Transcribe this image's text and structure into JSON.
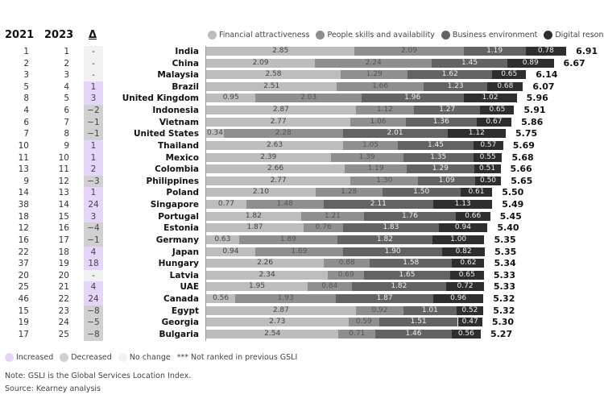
{
  "headers": {
    "y2021": "2021",
    "y2023": "2023",
    "delta": "Δ"
  },
  "legend": [
    {
      "label": "Financial attractiveness",
      "color": "#bdbdbd"
    },
    {
      "label": "People skills and availability",
      "color": "#8f8f8f"
    },
    {
      "label": "Business environment",
      "color": "#636363"
    },
    {
      "label": "Digital resonance",
      "color": "#2e2e2e"
    }
  ],
  "change_legend": [
    {
      "label": "Increased",
      "color": "#e6d5fb"
    },
    {
      "label": "Decreased",
      "color": "#d0d0d0"
    },
    {
      "label": "No change",
      "color": "#f2f2f2"
    }
  ],
  "not_ranked_note": "*** Not ranked in previous GSLI",
  "note": "Note: GSLI is the Global Services Location Index.",
  "source": "Source: Kearney analysis",
  "chart_data": {
    "type": "bar",
    "orientation": "horizontal",
    "stacked": true,
    "series_names": [
      "Financial attractiveness",
      "People skills and availability",
      "Business environment",
      "Digital resonance"
    ],
    "rows": [
      {
        "country": "India",
        "r2021": "1",
        "r2023": "1",
        "delta": "-",
        "change": "none",
        "values": [
          2.85,
          2.09,
          1.19,
          0.78
        ],
        "total": "6.91"
      },
      {
        "country": "China",
        "r2021": "2",
        "r2023": "2",
        "delta": "-",
        "change": "none",
        "values": [
          2.09,
          2.24,
          1.45,
          0.89
        ],
        "total": "6.67"
      },
      {
        "country": "Malaysia",
        "r2021": "3",
        "r2023": "3",
        "delta": "-",
        "change": "none",
        "values": [
          2.58,
          1.29,
          1.62,
          0.65
        ],
        "total": "6.14"
      },
      {
        "country": "Brazil",
        "r2021": "5",
        "r2023": "4",
        "delta": "1",
        "change": "up",
        "values": [
          2.51,
          1.66,
          1.23,
          0.68
        ],
        "total": "6.07"
      },
      {
        "country": "United Kingdom",
        "r2021": "8",
        "r2023": "5",
        "delta": "3",
        "change": "up",
        "values": [
          0.95,
          2.03,
          1.96,
          1.02
        ],
        "total": "5.96"
      },
      {
        "country": "Indonesia",
        "r2021": "4",
        "r2023": "6",
        "delta": "−2",
        "change": "down",
        "values": [
          2.87,
          1.12,
          1.27,
          0.65
        ],
        "total": "5.91"
      },
      {
        "country": "Vietnam",
        "r2021": "6",
        "r2023": "7",
        "delta": "−1",
        "change": "down",
        "values": [
          2.77,
          1.06,
          1.36,
          0.67
        ],
        "total": "5.86"
      },
      {
        "country": "United States",
        "r2021": "7",
        "r2023": "8",
        "delta": "−1",
        "change": "down",
        "values": [
          0.34,
          2.28,
          2.01,
          1.12
        ],
        "total": "5.75"
      },
      {
        "country": "Thailand",
        "r2021": "10",
        "r2023": "9",
        "delta": "1",
        "change": "up",
        "values": [
          2.63,
          1.05,
          1.45,
          0.57
        ],
        "total": "5.69"
      },
      {
        "country": "Mexico",
        "r2021": "11",
        "r2023": "10",
        "delta": "1",
        "change": "up",
        "values": [
          2.39,
          1.39,
          1.35,
          0.55
        ],
        "total": "5.68"
      },
      {
        "country": "Colombia",
        "r2021": "13",
        "r2023": "11",
        "delta": "2",
        "change": "up",
        "values": [
          2.66,
          1.19,
          1.29,
          0.51
        ],
        "total": "5.66"
      },
      {
        "country": "Philippines",
        "r2021": "9",
        "r2023": "12",
        "delta": "−3",
        "change": "down",
        "values": [
          2.77,
          1.3,
          1.09,
          0.5
        ],
        "total": "5.65"
      },
      {
        "country": "Poland",
        "r2021": "14",
        "r2023": "13",
        "delta": "1",
        "change": "up",
        "values": [
          2.1,
          1.28,
          1.5,
          0.61
        ],
        "total": "5.50"
      },
      {
        "country": "Singapore",
        "r2021": "38",
        "r2023": "14",
        "delta": "24",
        "change": "up",
        "values": [
          0.77,
          1.48,
          2.11,
          1.13
        ],
        "total": "5.49"
      },
      {
        "country": "Portugal",
        "r2021": "18",
        "r2023": "15",
        "delta": "3",
        "change": "up",
        "values": [
          1.82,
          1.21,
          1.76,
          0.66
        ],
        "total": "5.45"
      },
      {
        "country": "Estonia",
        "r2021": "12",
        "r2023": "16",
        "delta": "−4",
        "change": "down",
        "values": [
          1.87,
          0.76,
          1.83,
          0.94
        ],
        "total": "5.40"
      },
      {
        "country": "Germany",
        "r2021": "16",
        "r2023": "17",
        "delta": "−1",
        "change": "down",
        "values": [
          0.63,
          1.89,
          1.82,
          1.0
        ],
        "total": "5.35"
      },
      {
        "country": "Japan",
        "r2021": "22",
        "r2023": "18",
        "delta": "4",
        "change": "up",
        "values": [
          0.94,
          1.69,
          1.9,
          0.82
        ],
        "total": "5.35"
      },
      {
        "country": "Hungary",
        "r2021": "37",
        "r2023": "19",
        "delta": "18",
        "change": "up",
        "values": [
          2.26,
          0.88,
          1.58,
          0.62
        ],
        "total": "5.34"
      },
      {
        "country": "Latvia",
        "r2021": "20",
        "r2023": "20",
        "delta": "-",
        "change": "none",
        "values": [
          2.34,
          0.69,
          1.65,
          0.65
        ],
        "total": "5.33"
      },
      {
        "country": "UAE",
        "r2021": "25",
        "r2023": "21",
        "delta": "4",
        "change": "up",
        "values": [
          1.95,
          0.84,
          1.82,
          0.72
        ],
        "total": "5.33"
      },
      {
        "country": "Canada",
        "r2021": "46",
        "r2023": "22",
        "delta": "24",
        "change": "up",
        "values": [
          0.56,
          1.93,
          1.87,
          0.96
        ],
        "total": "5.32"
      },
      {
        "country": "Egypt",
        "r2021": "15",
        "r2023": "23",
        "delta": "−8",
        "change": "down",
        "values": [
          2.87,
          0.92,
          1.01,
          0.52
        ],
        "total": "5.32"
      },
      {
        "country": "Georgia",
        "r2021": "19",
        "r2023": "24",
        "delta": "−5",
        "change": "down",
        "values": [
          2.73,
          0.59,
          1.51,
          0.47
        ],
        "total": "5.30"
      },
      {
        "country": "Bulgaria",
        "r2021": "17",
        "r2023": "25",
        "delta": "−8",
        "change": "down",
        "values": [
          2.54,
          0.71,
          1.46,
          0.56
        ],
        "total": "5.27"
      }
    ]
  }
}
